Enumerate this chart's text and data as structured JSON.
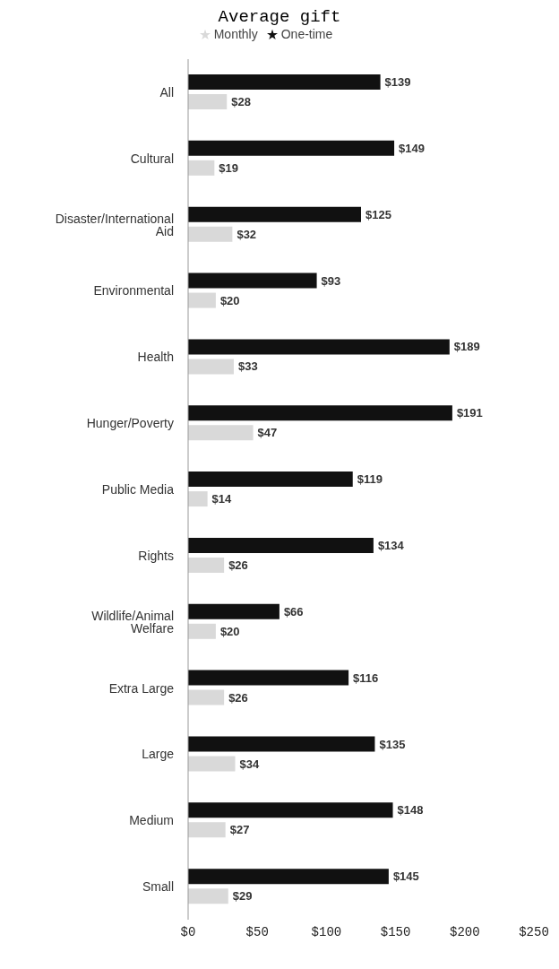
{
  "chart_data": {
    "type": "bar",
    "orientation": "horizontal",
    "title": "Average gift",
    "categories": [
      "All",
      "Cultural",
      "Disaster/International Aid",
      "Environmental",
      "Health",
      "Hunger/Poverty",
      "Public Media",
      "Rights",
      "Wildlife/Animal Welfare",
      "Extra Large",
      "Large",
      "Medium",
      "Small"
    ],
    "series": [
      {
        "name": "One-time",
        "color": "#111111",
        "values": [
          139,
          149,
          125,
          93,
          189,
          191,
          119,
          134,
          66,
          116,
          135,
          148,
          145
        ],
        "value_labels": [
          "$139",
          "$149",
          "$125",
          "$93",
          "$189",
          "$191",
          "$119",
          "$134",
          "$66",
          "$116",
          "$135",
          "$148",
          "$145"
        ]
      },
      {
        "name": "Monthly",
        "color": "#d9d9d9",
        "values": [
          28,
          19,
          32,
          20,
          33,
          47,
          14,
          26,
          20,
          26,
          34,
          27,
          29
        ],
        "value_labels": [
          "$28",
          "$19",
          "$32",
          "$20",
          "$33",
          "$47",
          "$14",
          "$26",
          "$20",
          "$26",
          "$34",
          "$27",
          "$29"
        ]
      }
    ],
    "xlim": [
      0,
      250
    ],
    "xticks": [
      {
        "value": 0,
        "label": "$0"
      },
      {
        "value": 50,
        "label": "$50"
      },
      {
        "value": 100,
        "label": "$100"
      },
      {
        "value": 150,
        "label": "$150"
      },
      {
        "value": 200,
        "label": "$200"
      },
      {
        "value": 250,
        "label": "$250"
      }
    ],
    "grid": false,
    "legend": "top",
    "marker": "star"
  }
}
